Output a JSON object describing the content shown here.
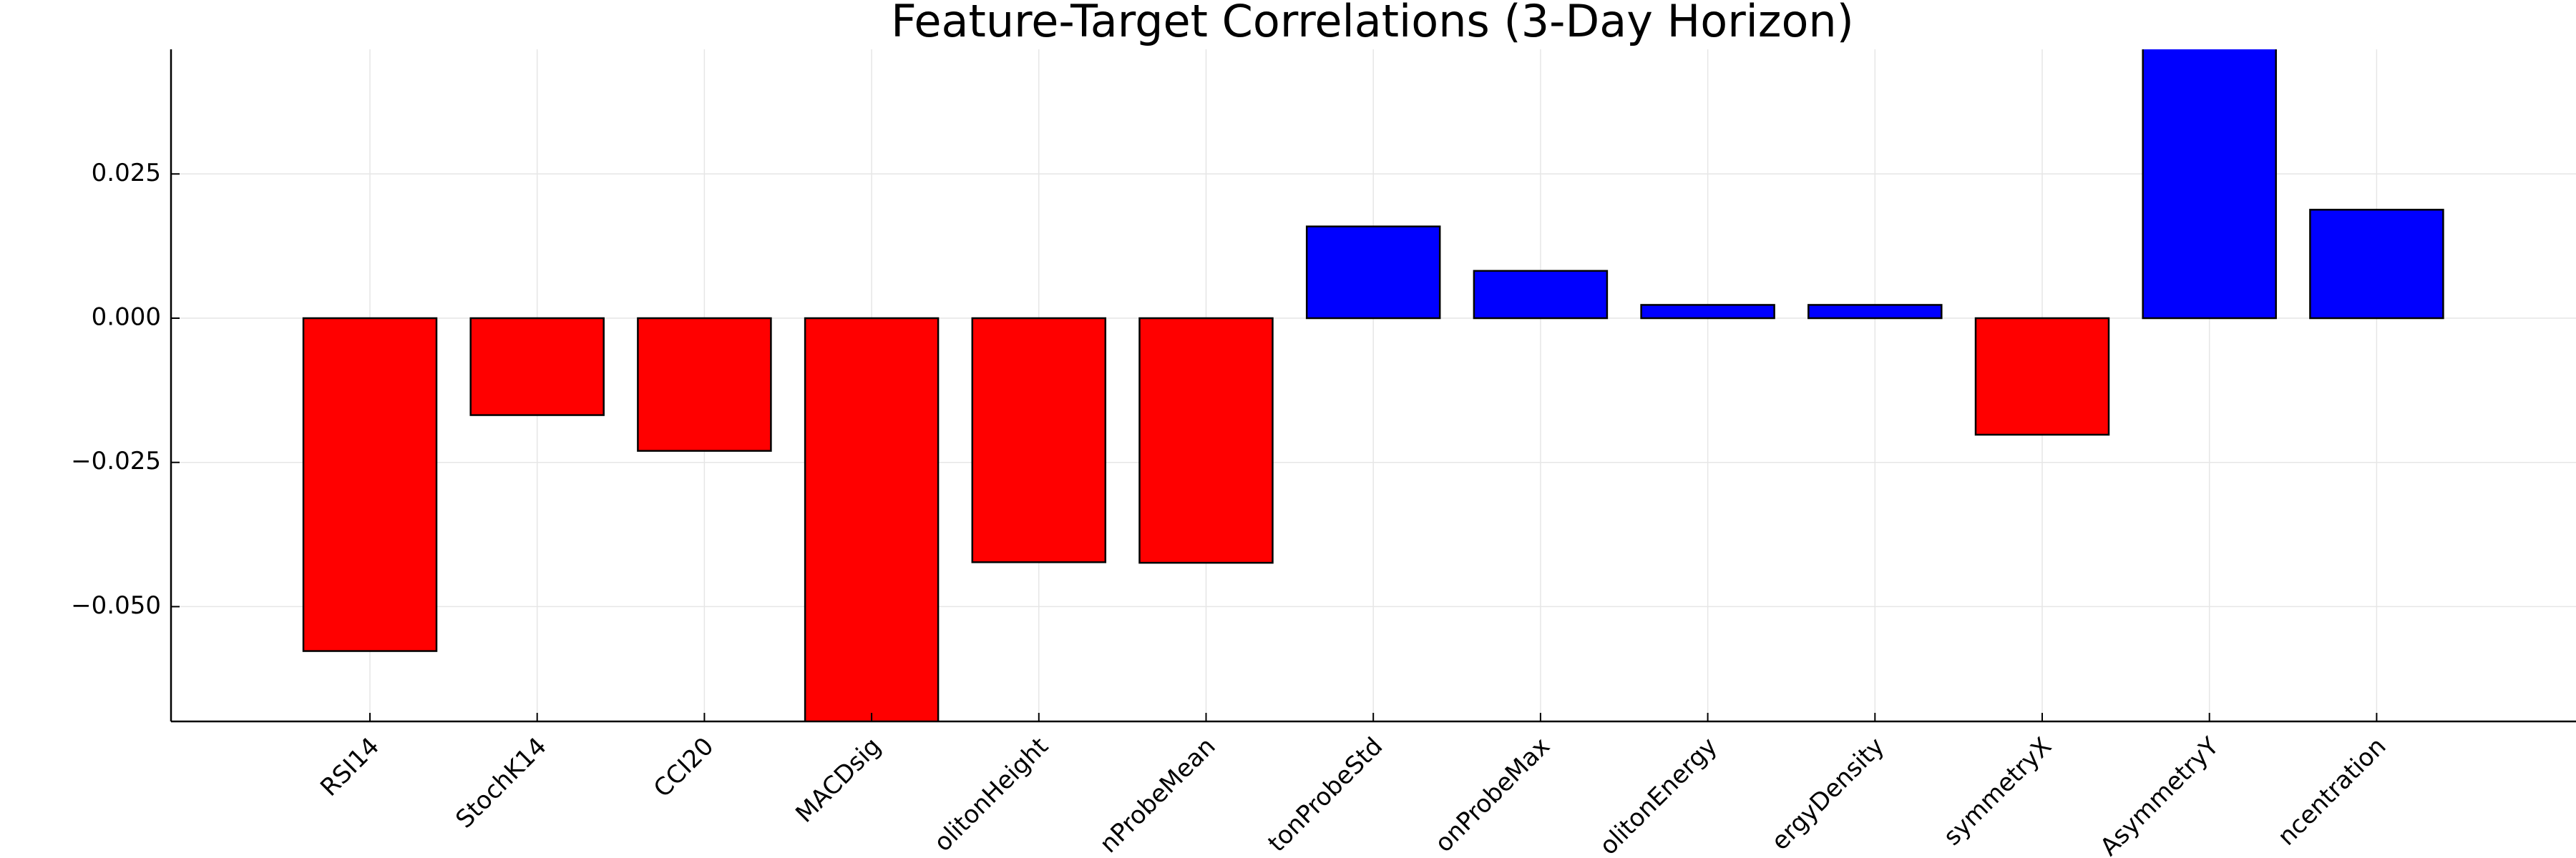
{
  "chart_data": {
    "type": "bar",
    "title": "Feature-Target Correlations (3-Day Horizon)",
    "categories": [
      "RSI14",
      "StochK14",
      "CCI20",
      "MACDsig",
      "olitonHeight",
      "nProbeMean",
      "tonProbeStd",
      "onProbeMax",
      "olitonEnergy",
      "ergyDensity",
      "symmetryX",
      "AsymmetryY",
      "ncentration"
    ],
    "values": [
      -0.0577,
      -0.0168,
      -0.023,
      -0.075,
      -0.0423,
      -0.0424,
      0.0159,
      0.0082,
      0.0023,
      0.0023,
      -0.0202,
      0.05,
      0.0188
    ],
    "colors": [
      "#ff0000",
      "#ff0000",
      "#ff0000",
      "#ff0000",
      "#ff0000",
      "#ff0000",
      "#0000ff",
      "#0000ff",
      "#0000ff",
      "#0000ff",
      "#ff0000",
      "#0000ff",
      "#0000ff"
    ],
    "ylim": [
      -0.0699,
      0.0466
    ],
    "yticks": [
      {
        "value": -0.05,
        "label": "−0.050"
      },
      {
        "value": -0.025,
        "label": "−0.025"
      },
      {
        "value": 0,
        "label": "0.000"
      },
      {
        "value": 0.025,
        "label": "0.025"
      }
    ],
    "grid": true
  }
}
